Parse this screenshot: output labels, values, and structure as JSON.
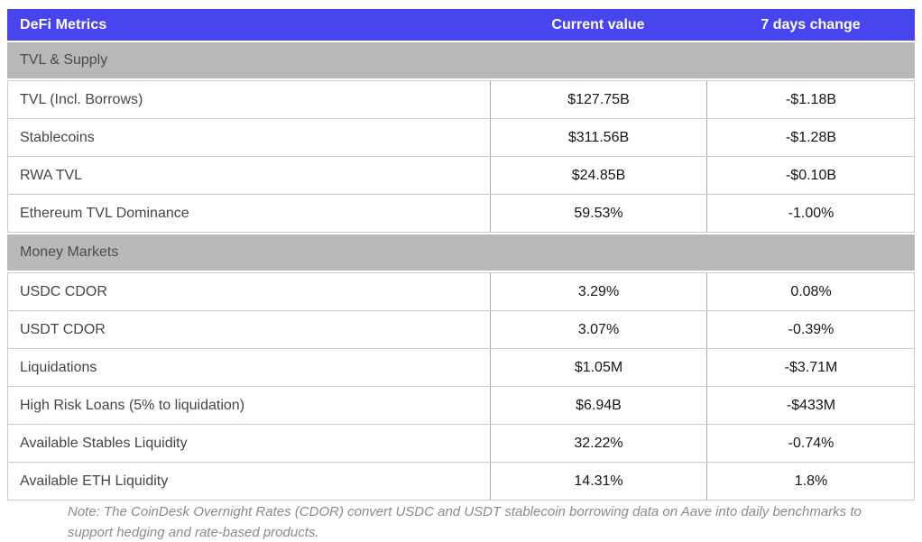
{
  "table": {
    "title": "DeFi Metrics",
    "columns": [
      "Current value",
      "7 days change"
    ],
    "sections": [
      {
        "label": "TVL & Supply",
        "rows": [
          {
            "metric": "TVL (Incl. Borrows)",
            "current": "$127.75B",
            "change": "-$1.18B"
          },
          {
            "metric": "Stablecoins",
            "current": "$311.56B",
            "change": "-$1.28B"
          },
          {
            "metric": "RWA TVL",
            "current": "$24.85B",
            "change": "-$0.10B"
          },
          {
            "metric": "Ethereum TVL Dominance",
            "current": "59.53%",
            "change": "-1.00%"
          }
        ]
      },
      {
        "label": "Money Markets",
        "rows": [
          {
            "metric": "USDC CDOR",
            "current": "3.29%",
            "change": "0.08%"
          },
          {
            "metric": "USDT CDOR",
            "current": "3.07%",
            "change": "-0.39%"
          },
          {
            "metric": "Liquidations",
            "current": "$1.05M",
            "change": "-$3.71M"
          },
          {
            "metric": "High Risk Loans (5% to liquidation)",
            "current": "$6.94B",
            "change": "-$433M"
          },
          {
            "metric": "Available Stables Liquidity",
            "current": "32.22%",
            "change": "-0.74%"
          },
          {
            "metric": "Available ETH Liquidity",
            "current": "14.31%",
            "change": "1.8%"
          }
        ]
      }
    ],
    "note": "Note: The CoinDesk Overnight Rates (CDOR) convert USDC and USDT stablecoin borrowing data on Aave into daily benchmarks to support hedging and rate-based products."
  },
  "colors": {
    "header_background": "#4845ef",
    "header_text": "#ffffff",
    "section_band_background": "#b8b8b8",
    "section_band_text": "#4b4b4b",
    "row_border": "#cbcbcb",
    "column_divider": "#a9a9a9",
    "metric_text": "#454545",
    "value_text": "#161616",
    "note_text": "#8b8b8b"
  }
}
